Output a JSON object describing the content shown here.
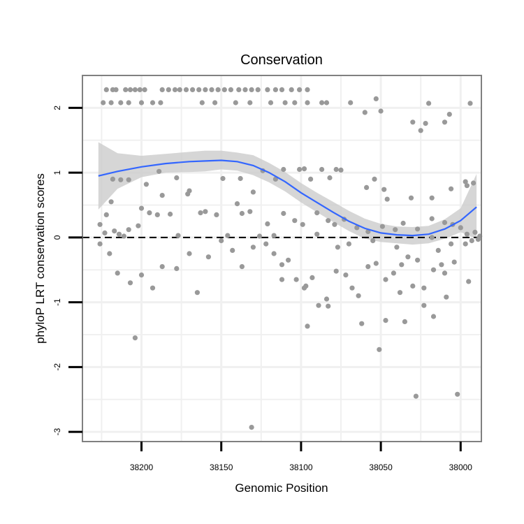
{
  "chart_data": {
    "type": "scatter",
    "title": "Conservation",
    "xlabel": "Genomic Position",
    "ylabel": "phyloP LRT conservation scores",
    "x_reversed": true,
    "xlim": [
      37987,
      38237
    ],
    "ylim": [
      -3.15,
      2.5
    ],
    "x_ticks": [
      38200,
      38150,
      38100,
      38050,
      38000
    ],
    "x_tick_labels": [
      "38200",
      "38150",
      "38100",
      "38050",
      "38000"
    ],
    "y_ticks": [
      -3,
      -2,
      -1,
      0,
      1,
      2
    ],
    "y_tick_labels": [
      "-3",
      "-2",
      "-1",
      "0",
      "1",
      "2"
    ],
    "grid": true,
    "background": "#ffffff",
    "grid_color": "#f0f0f0",
    "point_color": "#999999",
    "smooth_color": "#3366ff",
    "band_color": "#cccccc",
    "reference_line": {
      "y": 0,
      "style": "dashed",
      "color": "#000000"
    },
    "points": [
      [
        38222,
        2.28
      ],
      [
        38218,
        2.28
      ],
      [
        38216,
        2.28
      ],
      [
        38210,
        2.28
      ],
      [
        38207,
        2.28
      ],
      [
        38204,
        2.28
      ],
      [
        38201,
        2.28
      ],
      [
        38198,
        2.28
      ],
      [
        38187,
        2.28
      ],
      [
        38183,
        2.28
      ],
      [
        38179,
        2.28
      ],
      [
        38176,
        2.28
      ],
      [
        38172,
        2.28
      ],
      [
        38168,
        2.28
      ],
      [
        38164,
        2.28
      ],
      [
        38160,
        2.28
      ],
      [
        38156,
        2.28
      ],
      [
        38152,
        2.28
      ],
      [
        38148,
        2.28
      ],
      [
        38144,
        2.28
      ],
      [
        38139,
        2.28
      ],
      [
        38135,
        2.28
      ],
      [
        38131,
        2.28
      ],
      [
        38127,
        2.28
      ],
      [
        38121,
        2.28
      ],
      [
        38116,
        2.28
      ],
      [
        38112,
        2.28
      ],
      [
        38106,
        2.28
      ],
      [
        38101,
        2.28
      ],
      [
        38096,
        2.28
      ],
      [
        38224,
        2.08
      ],
      [
        38219,
        2.08
      ],
      [
        38213,
        2.08
      ],
      [
        38208,
        2.08
      ],
      [
        38200,
        2.08
      ],
      [
        38193,
        2.08
      ],
      [
        38188,
        2.08
      ],
      [
        38162,
        2.08
      ],
      [
        38154,
        2.08
      ],
      [
        38141,
        2.08
      ],
      [
        38132,
        2.08
      ],
      [
        38119,
        2.08
      ],
      [
        38110,
        2.08
      ],
      [
        38104,
        2.08
      ],
      [
        38096,
        2.08
      ],
      [
        38087,
        2.08
      ],
      [
        38084,
        2.08
      ],
      [
        38069,
        2.08
      ],
      [
        38053,
        2.14
      ],
      [
        38060,
        1.93
      ],
      [
        38050,
        1.95
      ],
      [
        38020,
        2.07
      ],
      [
        38007,
        1.9
      ],
      [
        37994,
        2.07
      ],
      [
        38030,
        1.78
      ],
      [
        38025,
        1.65
      ],
      [
        38022,
        1.76
      ],
      [
        38010,
        1.78
      ],
      [
        38189,
        1.02
      ],
      [
        38178,
        0.92
      ],
      [
        38171,
        0.67
      ],
      [
        38149,
        0.91
      ],
      [
        38138,
        0.91
      ],
      [
        38130,
        0.7
      ],
      [
        38124,
        1.03
      ],
      [
        38116,
        0.9
      ],
      [
        38111,
        1.05
      ],
      [
        38101,
        1.05
      ],
      [
        38098,
        1.06
      ],
      [
        38094,
        0.9
      ],
      [
        38087,
        1.05
      ],
      [
        38082,
        0.92
      ],
      [
        38078,
        1.05
      ],
      [
        38075,
        1.04
      ],
      [
        38059,
        0.77
      ],
      [
        38054,
        0.9
      ],
      [
        38048,
        0.74
      ],
      [
        38046,
        0.59
      ],
      [
        38031,
        0.61
      ],
      [
        38018,
        0.61
      ],
      [
        38006,
        0.75
      ],
      [
        37997,
        0.86
      ],
      [
        37996,
        0.8
      ],
      [
        37992,
        0.84
      ],
      [
        38218,
        0.9
      ],
      [
        38213,
        0.89
      ],
      [
        38208,
        0.89
      ],
      [
        38197,
        0.82
      ],
      [
        38226,
        0.2
      ],
      [
        38222,
        0.35
      ],
      [
        38219,
        0.55
      ],
      [
        38214,
        0.05
      ],
      [
        38208,
        0.12
      ],
      [
        38202,
        0.18
      ],
      [
        38200,
        0.45
      ],
      [
        38195,
        0.38
      ],
      [
        38190,
        0.35
      ],
      [
        38187,
        0.65
      ],
      [
        38182,
        0.36
      ],
      [
        38177,
        0.03
      ],
      [
        38170,
        0.72
      ],
      [
        38163,
        0.38
      ],
      [
        38160,
        0.4
      ],
      [
        38153,
        0.35
      ],
      [
        38146,
        0.03
      ],
      [
        38140,
        0.52
      ],
      [
        38137,
        0.37
      ],
      [
        38132,
        0.4
      ],
      [
        38126,
        0.02
      ],
      [
        38121,
        0.21
      ],
      [
        38117,
        0.03
      ],
      [
        38111,
        0.37
      ],
      [
        38104,
        0.26
      ],
      [
        38099,
        0.2
      ],
      [
        38090,
        0.38
      ],
      [
        38083,
        0.26
      ],
      [
        38079,
        0.2
      ],
      [
        38073,
        0.28
      ],
      [
        38065,
        0.15
      ],
      [
        38058,
        0.09
      ],
      [
        38049,
        0.17
      ],
      [
        38041,
        0.12
      ],
      [
        38036,
        0.22
      ],
      [
        38027,
        0.13
      ],
      [
        38018,
        0.29
      ],
      [
        38010,
        0.23
      ],
      [
        38005,
        0.2
      ],
      [
        38000,
        0.15
      ],
      [
        37996,
        0.05
      ],
      [
        37991,
        0.08
      ],
      [
        37988,
        0.02
      ],
      [
        38223,
        0.07
      ],
      [
        38217,
        0.1
      ],
      [
        38211,
        0.02
      ],
      [
        38226,
        -0.1
      ],
      [
        38220,
        -0.25
      ],
      [
        38215,
        -0.55
      ],
      [
        38207,
        -0.7
      ],
      [
        38200,
        -0.58
      ],
      [
        38193,
        -0.78
      ],
      [
        38187,
        -0.45
      ],
      [
        38178,
        -0.48
      ],
      [
        38170,
        -0.25
      ],
      [
        38165,
        -0.85
      ],
      [
        38158,
        -0.3
      ],
      [
        38150,
        -0.05
      ],
      [
        38143,
        -0.2
      ],
      [
        38137,
        -0.45
      ],
      [
        38130,
        -0.15
      ],
      [
        38122,
        -0.1
      ],
      [
        38117,
        -0.25
      ],
      [
        38112,
        -0.42
      ],
      [
        38108,
        -0.35
      ],
      [
        38103,
        -0.65
      ],
      [
        38098,
        -0.78
      ],
      [
        38093,
        -0.62
      ],
      [
        38084,
        -0.95
      ],
      [
        38078,
        -0.52
      ],
      [
        38072,
        -0.58
      ],
      [
        38068,
        -0.78
      ],
      [
        38064,
        -0.9
      ],
      [
        38058,
        -0.45
      ],
      [
        38053,
        -0.4
      ],
      [
        38047,
        -0.65
      ],
      [
        38042,
        -0.55
      ],
      [
        38037,
        -0.42
      ],
      [
        38033,
        -0.3
      ],
      [
        38027,
        -0.35
      ],
      [
        38023,
        -0.78
      ],
      [
        38017,
        -0.5
      ],
      [
        38012,
        -0.42
      ],
      [
        38009,
        -0.92
      ],
      [
        38004,
        -0.38
      ],
      [
        37997,
        -0.1
      ],
      [
        37993,
        -0.05
      ],
      [
        37989,
        -0.03
      ],
      [
        38096,
        -1.37
      ],
      [
        38083,
        -1.06
      ],
      [
        38062,
        -1.33
      ],
      [
        38047,
        -1.28
      ],
      [
        38051,
        -1.73
      ],
      [
        38035,
        -1.3
      ],
      [
        38023,
        -1.05
      ],
      [
        38017,
        -1.22
      ],
      [
        38038,
        -0.85
      ],
      [
        38030,
        -0.75
      ],
      [
        38010,
        -0.55
      ],
      [
        38204,
        -1.55
      ],
      [
        38097,
        -0.75
      ],
      [
        38089,
        -1.05
      ],
      [
        38028,
        -2.45
      ],
      [
        38002,
        -2.42
      ],
      [
        38131,
        -2.93
      ],
      [
        38112,
        -0.65
      ],
      [
        37995,
        -0.68
      ],
      [
        38014,
        -0.2
      ],
      [
        38018,
        0.0
      ],
      [
        38006,
        -0.1
      ],
      [
        38040,
        -0.15
      ],
      [
        38055,
        -0.05
      ],
      [
        38070,
        -0.1
      ],
      [
        38077,
        -0.15
      ],
      [
        38090,
        0.05
      ]
    ],
    "smooth": [
      [
        38227,
        0.95
      ],
      [
        38215,
        1.02
      ],
      [
        38200,
        1.09
      ],
      [
        38185,
        1.14
      ],
      [
        38170,
        1.17
      ],
      [
        38160,
        1.18
      ],
      [
        38150,
        1.19
      ],
      [
        38140,
        1.17
      ],
      [
        38130,
        1.11
      ],
      [
        38120,
        1.0
      ],
      [
        38110,
        0.86
      ],
      [
        38100,
        0.69
      ],
      [
        38090,
        0.54
      ],
      [
        38080,
        0.39
      ],
      [
        38070,
        0.25
      ],
      [
        38060,
        0.14
      ],
      [
        38050,
        0.07
      ],
      [
        38040,
        0.04
      ],
      [
        38030,
        0.03
      ],
      [
        38020,
        0.05
      ],
      [
        38010,
        0.13
      ],
      [
        38000,
        0.26
      ],
      [
        37990,
        0.47
      ]
    ],
    "band_upper": [
      [
        38227,
        1.47
      ],
      [
        38215,
        1.3
      ],
      [
        38200,
        1.26
      ],
      [
        38185,
        1.29
      ],
      [
        38170,
        1.32
      ],
      [
        38160,
        1.34
      ],
      [
        38150,
        1.34
      ],
      [
        38140,
        1.31
      ],
      [
        38130,
        1.27
      ],
      [
        38120,
        1.15
      ],
      [
        38110,
        1.01
      ],
      [
        38100,
        0.84
      ],
      [
        38090,
        0.69
      ],
      [
        38080,
        0.55
      ],
      [
        38070,
        0.41
      ],
      [
        38060,
        0.29
      ],
      [
        38050,
        0.21
      ],
      [
        38040,
        0.17
      ],
      [
        38030,
        0.16
      ],
      [
        38020,
        0.18
      ],
      [
        38010,
        0.28
      ],
      [
        38000,
        0.45
      ],
      [
        37990,
        0.98
      ]
    ],
    "band_lower": [
      [
        37990,
        -0.02
      ],
      [
        38000,
        0.08
      ],
      [
        38010,
        -0.02
      ],
      [
        38020,
        -0.09
      ],
      [
        38030,
        -0.11
      ],
      [
        38040,
        -0.09
      ],
      [
        38050,
        -0.07
      ],
      [
        38060,
        -0.02
      ],
      [
        38070,
        0.1
      ],
      [
        38080,
        0.24
      ],
      [
        38090,
        0.39
      ],
      [
        38100,
        0.54
      ],
      [
        38110,
        0.71
      ],
      [
        38120,
        0.85
      ],
      [
        38130,
        0.96
      ],
      [
        38140,
        1.03
      ],
      [
        38150,
        1.05
      ],
      [
        38160,
        1.02
      ],
      [
        38170,
        1.01
      ],
      [
        38185,
        1.0
      ],
      [
        38200,
        0.93
      ],
      [
        38215,
        0.75
      ],
      [
        38227,
        0.43
      ]
    ]
  }
}
